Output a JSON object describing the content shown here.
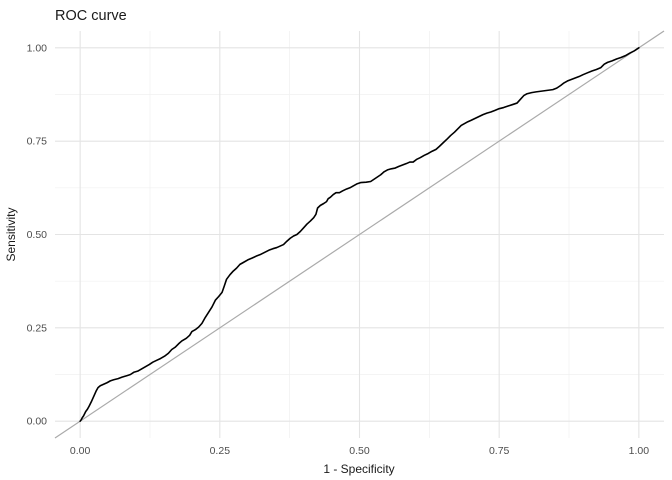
{
  "chart_data": {
    "type": "line",
    "title": "ROC curve",
    "xlabel": "1 - Specificity",
    "ylabel": "Sensitivity",
    "xlim": [
      0,
      1
    ],
    "ylim": [
      0,
      1
    ],
    "grid": "major+minor",
    "legend": "none",
    "x_ticks": {
      "values": [
        0,
        0.25,
        0.5,
        0.75,
        1
      ],
      "labels": [
        "0.00",
        "0.25",
        "0.50",
        "0.75",
        "1.00"
      ]
    },
    "y_ticks": {
      "values": [
        0,
        0.25,
        0.5,
        0.75,
        1
      ],
      "labels": [
        "0.00",
        "0.25",
        "0.50",
        "0.75",
        "1.00"
      ]
    },
    "minor_tick_values": [
      0.125,
      0.375,
      0.625,
      0.875
    ],
    "colors": {
      "background": "#ffffff",
      "grid_major": "#e4e4e4",
      "grid_minor": "#f0f0f0",
      "tick_text": "#4d4d4d",
      "label_text": "#1a1a1a",
      "roc_curve": "#000000",
      "diagonal": "#aaaaaa"
    },
    "reference_line": {
      "name": "chance-diagonal",
      "from": [
        0,
        0
      ],
      "to": [
        1,
        1
      ],
      "color": "#aaaaaa",
      "width": 1.2,
      "extends_to_panel_edges": true
    },
    "series": [
      {
        "name": "ROC curve",
        "color": "#000000",
        "width": 1.6,
        "points": [
          [
            0.0,
            0.0
          ],
          [
            0.002,
            0.004
          ],
          [
            0.004,
            0.01
          ],
          [
            0.006,
            0.014
          ],
          [
            0.008,
            0.02
          ],
          [
            0.01,
            0.026
          ],
          [
            0.013,
            0.032
          ],
          [
            0.016,
            0.04
          ],
          [
            0.018,
            0.046
          ],
          [
            0.02,
            0.052
          ],
          [
            0.023,
            0.062
          ],
          [
            0.026,
            0.072
          ],
          [
            0.029,
            0.082
          ],
          [
            0.032,
            0.09
          ],
          [
            0.036,
            0.095
          ],
          [
            0.042,
            0.099
          ],
          [
            0.048,
            0.103
          ],
          [
            0.054,
            0.108
          ],
          [
            0.06,
            0.111
          ],
          [
            0.068,
            0.114
          ],
          [
            0.075,
            0.118
          ],
          [
            0.084,
            0.122
          ],
          [
            0.09,
            0.125
          ],
          [
            0.096,
            0.131
          ],
          [
            0.103,
            0.134
          ],
          [
            0.11,
            0.14
          ],
          [
            0.117,
            0.146
          ],
          [
            0.124,
            0.152
          ],
          [
            0.13,
            0.158
          ],
          [
            0.137,
            0.163
          ],
          [
            0.144,
            0.168
          ],
          [
            0.151,
            0.174
          ],
          [
            0.158,
            0.182
          ],
          [
            0.164,
            0.192
          ],
          [
            0.17,
            0.198
          ],
          [
            0.176,
            0.207
          ],
          [
            0.182,
            0.215
          ],
          [
            0.19,
            0.222
          ],
          [
            0.196,
            0.23
          ],
          [
            0.2,
            0.24
          ],
          [
            0.206,
            0.245
          ],
          [
            0.212,
            0.252
          ],
          [
            0.218,
            0.262
          ],
          [
            0.224,
            0.278
          ],
          [
            0.23,
            0.292
          ],
          [
            0.236,
            0.306
          ],
          [
            0.242,
            0.324
          ],
          [
            0.248,
            0.334
          ],
          [
            0.254,
            0.345
          ],
          [
            0.258,
            0.362
          ],
          [
            0.262,
            0.38
          ],
          [
            0.268,
            0.392
          ],
          [
            0.274,
            0.402
          ],
          [
            0.28,
            0.41
          ],
          [
            0.286,
            0.42
          ],
          [
            0.292,
            0.425
          ],
          [
            0.3,
            0.432
          ],
          [
            0.308,
            0.437
          ],
          [
            0.315,
            0.442
          ],
          [
            0.322,
            0.446
          ],
          [
            0.33,
            0.452
          ],
          [
            0.338,
            0.458
          ],
          [
            0.345,
            0.462
          ],
          [
            0.352,
            0.465
          ],
          [
            0.358,
            0.469
          ],
          [
            0.364,
            0.473
          ],
          [
            0.37,
            0.482
          ],
          [
            0.376,
            0.49
          ],
          [
            0.382,
            0.496
          ],
          [
            0.388,
            0.5
          ],
          [
            0.394,
            0.508
          ],
          [
            0.4,
            0.518
          ],
          [
            0.406,
            0.528
          ],
          [
            0.412,
            0.536
          ],
          [
            0.418,
            0.545
          ],
          [
            0.422,
            0.554
          ],
          [
            0.425,
            0.571
          ],
          [
            0.43,
            0.578
          ],
          [
            0.436,
            0.583
          ],
          [
            0.441,
            0.588
          ],
          [
            0.444,
            0.596
          ],
          [
            0.448,
            0.6
          ],
          [
            0.453,
            0.607
          ],
          [
            0.458,
            0.612
          ],
          [
            0.464,
            0.612
          ],
          [
            0.47,
            0.617
          ],
          [
            0.477,
            0.622
          ],
          [
            0.484,
            0.626
          ],
          [
            0.49,
            0.631
          ],
          [
            0.496,
            0.636
          ],
          [
            0.502,
            0.639
          ],
          [
            0.512,
            0.64
          ],
          [
            0.52,
            0.642
          ],
          [
            0.526,
            0.648
          ],
          [
            0.532,
            0.654
          ],
          [
            0.538,
            0.66
          ],
          [
            0.544,
            0.668
          ],
          [
            0.55,
            0.673
          ],
          [
            0.557,
            0.676
          ],
          [
            0.564,
            0.678
          ],
          [
            0.57,
            0.682
          ],
          [
            0.577,
            0.686
          ],
          [
            0.584,
            0.69
          ],
          [
            0.59,
            0.694
          ],
          [
            0.596,
            0.694
          ],
          [
            0.602,
            0.701
          ],
          [
            0.609,
            0.706
          ],
          [
            0.616,
            0.712
          ],
          [
            0.623,
            0.717
          ],
          [
            0.63,
            0.723
          ],
          [
            0.637,
            0.728
          ],
          [
            0.643,
            0.736
          ],
          [
            0.65,
            0.746
          ],
          [
            0.657,
            0.756
          ],
          [
            0.663,
            0.765
          ],
          [
            0.67,
            0.774
          ],
          [
            0.676,
            0.783
          ],
          [
            0.682,
            0.792
          ],
          [
            0.688,
            0.797
          ],
          [
            0.694,
            0.802
          ],
          [
            0.7,
            0.806
          ],
          [
            0.707,
            0.811
          ],
          [
            0.714,
            0.816
          ],
          [
            0.721,
            0.821
          ],
          [
            0.728,
            0.825
          ],
          [
            0.735,
            0.828
          ],
          [
            0.742,
            0.832
          ],
          [
            0.75,
            0.837
          ],
          [
            0.758,
            0.84
          ],
          [
            0.766,
            0.844
          ],
          [
            0.774,
            0.848
          ],
          [
            0.782,
            0.852
          ],
          [
            0.788,
            0.862
          ],
          [
            0.794,
            0.872
          ],
          [
            0.8,
            0.877
          ],
          [
            0.808,
            0.88
          ],
          [
            0.816,
            0.882
          ],
          [
            0.826,
            0.884
          ],
          [
            0.836,
            0.886
          ],
          [
            0.846,
            0.888
          ],
          [
            0.853,
            0.892
          ],
          [
            0.86,
            0.899
          ],
          [
            0.866,
            0.906
          ],
          [
            0.872,
            0.911
          ],
          [
            0.879,
            0.915
          ],
          [
            0.886,
            0.919
          ],
          [
            0.893,
            0.923
          ],
          [
            0.9,
            0.928
          ],
          [
            0.908,
            0.933
          ],
          [
            0.916,
            0.938
          ],
          [
            0.924,
            0.942
          ],
          [
            0.932,
            0.947
          ],
          [
            0.938,
            0.956
          ],
          [
            0.944,
            0.961
          ],
          [
            0.952,
            0.965
          ],
          [
            0.96,
            0.97
          ],
          [
            0.968,
            0.974
          ],
          [
            0.976,
            0.979
          ],
          [
            0.984,
            0.986
          ],
          [
            0.992,
            0.992
          ],
          [
            1.0,
            1.0
          ]
        ]
      }
    ]
  }
}
